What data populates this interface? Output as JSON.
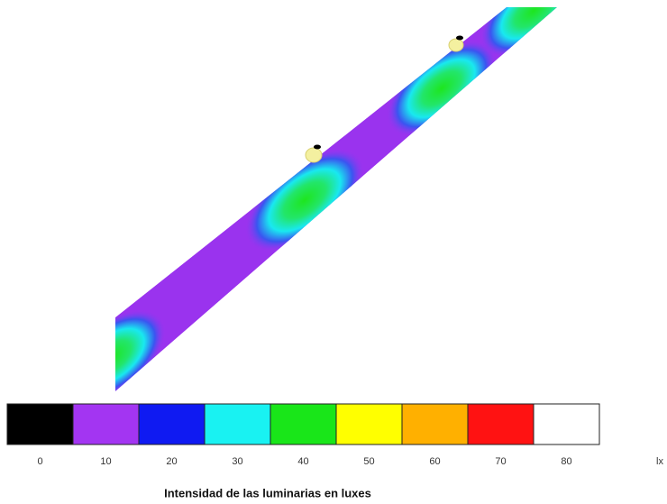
{
  "legend": {
    "items": [
      {
        "value": 0,
        "color": "#000000"
      },
      {
        "value": 10,
        "color": "#a335f2"
      },
      {
        "value": 20,
        "color": "#0f1af2"
      },
      {
        "value": 30,
        "color": "#19f2f2"
      },
      {
        "value": 40,
        "color": "#19e619"
      },
      {
        "value": 50,
        "color": "#ffff00"
      },
      {
        "value": 60,
        "color": "#ffb000"
      },
      {
        "value": 70,
        "color": "#ff1212"
      },
      {
        "value": 80,
        "color": "#ffffff"
      }
    ],
    "unit": "lx"
  },
  "caption": "Intensidad de las luminarias en luxes"
}
